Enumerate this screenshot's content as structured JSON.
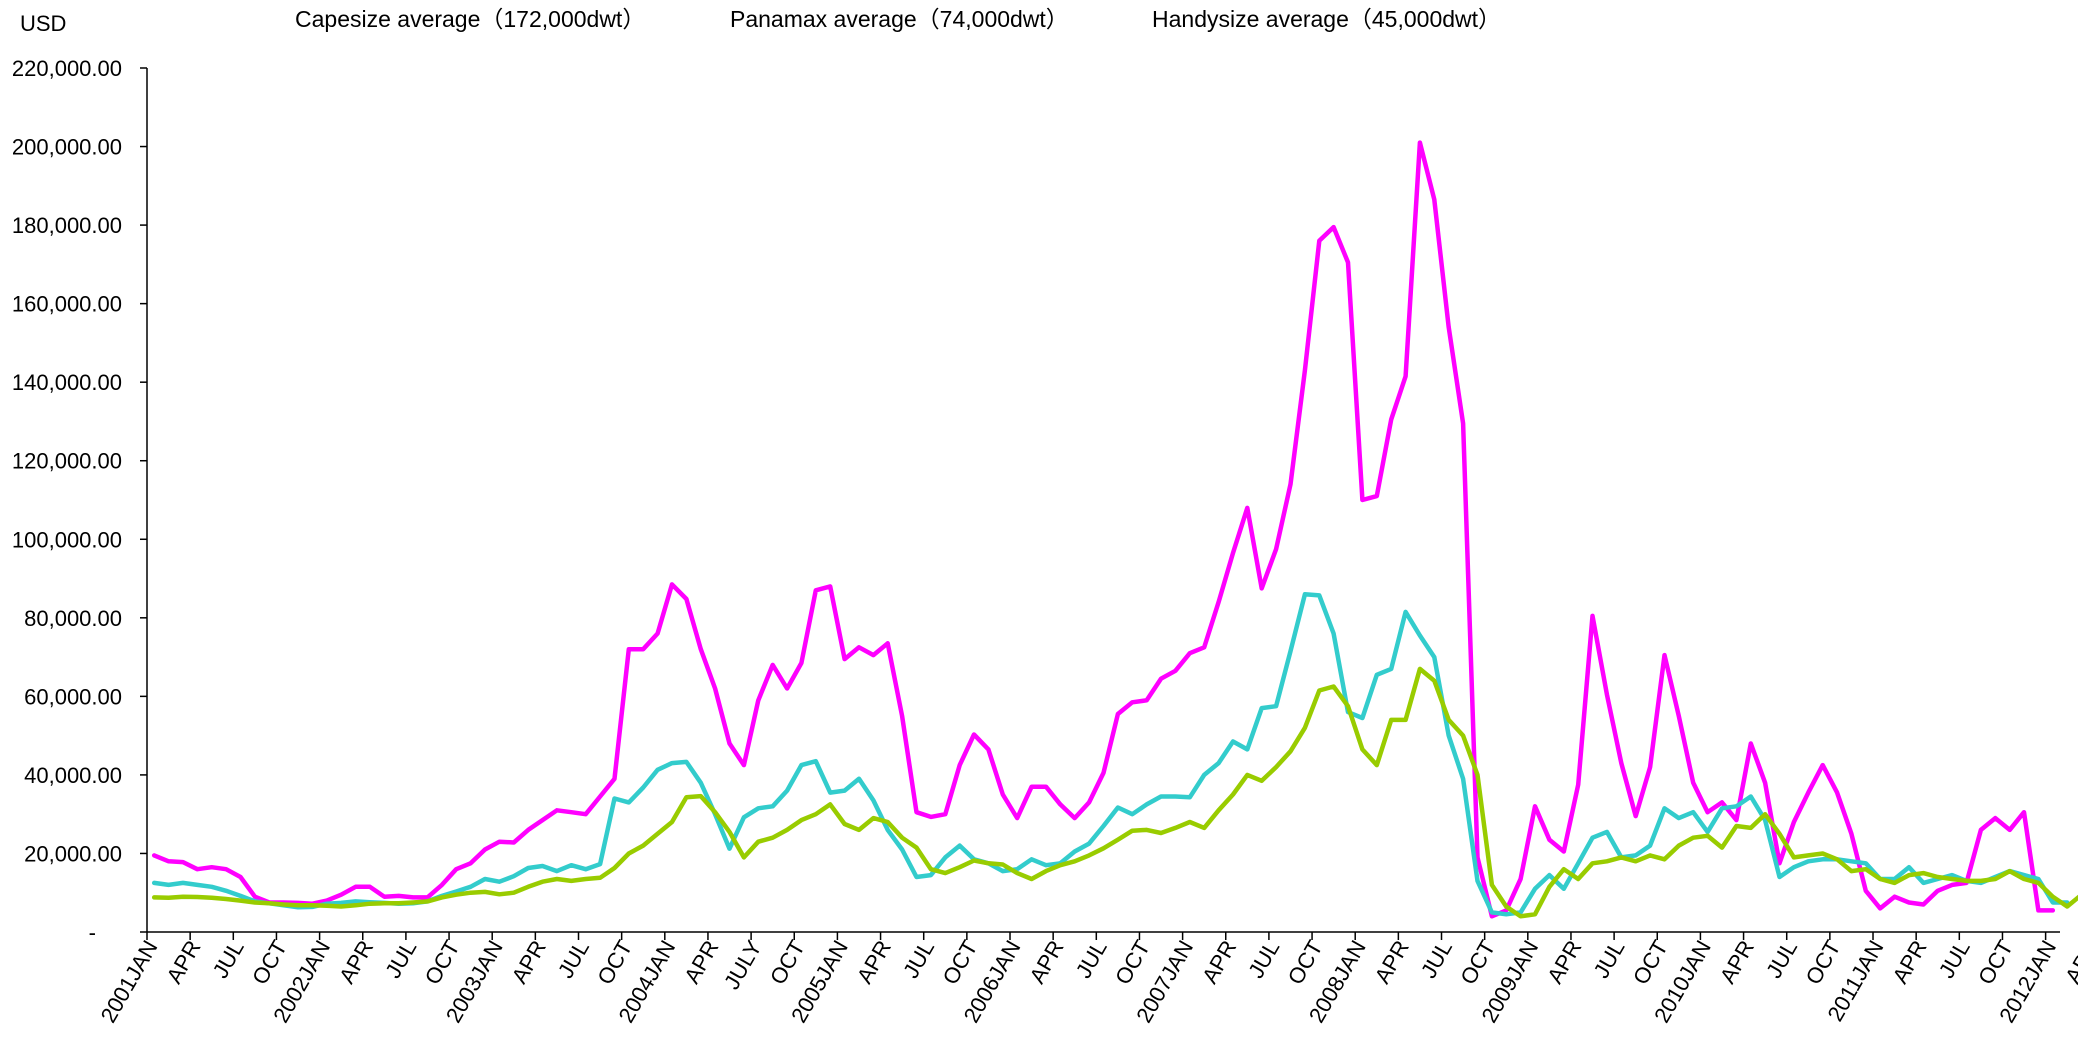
{
  "chart_data": {
    "type": "line",
    "title": "",
    "xlabel": "",
    "ylabel": "USD",
    "ylim": [
      0,
      220000
    ],
    "y_ticks": [
      {
        "value": 0,
        "label": "-"
      },
      {
        "value": 20000,
        "label": "20,000.00"
      },
      {
        "value": 40000,
        "label": "40,000.00"
      },
      {
        "value": 60000,
        "label": "60,000.00"
      },
      {
        "value": 80000,
        "label": "80,000.00"
      },
      {
        "value": 100000,
        "label": "100,000.00"
      },
      {
        "value": 120000,
        "label": "120,000.00"
      },
      {
        "value": 140000,
        "label": "140,000.00"
      },
      {
        "value": 160000,
        "label": "160,000.00"
      },
      {
        "value": 180000,
        "label": "180,000.00"
      },
      {
        "value": 200000,
        "label": "200,000.00"
      },
      {
        "value": 220000,
        "label": "220,000.00"
      }
    ],
    "x_tick_labels": [
      "2001JAN",
      "APR",
      "JUL",
      "OCT",
      "2002JAN",
      "APR",
      "JUL",
      "OCT",
      "2003JAN",
      "APR",
      "JUL",
      "OCT",
      "2004JAN",
      "APR",
      "JULY",
      "OCT",
      "2005JAN",
      "APR",
      "JUL",
      "OCT",
      "2006JAN",
      "APR",
      "JUL",
      "OCT",
      "2007JAN",
      "APR",
      "JUL",
      "OCT",
      "2008JAN",
      "APR",
      "JUL",
      "OCT",
      "2009JAN",
      "APR",
      "JUL",
      "OCT",
      "2010JAN",
      "APR",
      "JUL",
      "OCT",
      "2011JAN",
      "APR",
      "JUL",
      "OCT",
      "2012JAN",
      "APR"
    ],
    "legend_position": "top",
    "grid": false,
    "series": [
      {
        "name": "Capesize average（172,000dwt）",
        "color": "#ff00ff",
        "values": [
          19500,
          18000,
          17800,
          16000,
          16500,
          16000,
          14000,
          9000,
          7500,
          7500,
          7400,
          7200,
          8000,
          9500,
          11500,
          11500,
          9000,
          9200,
          8800,
          8800,
          12000,
          16000,
          17500,
          21000,
          23000,
          22800,
          26000,
          28500,
          31000,
          30500,
          30000,
          34500,
          39000,
          72000,
          72000,
          76000,
          88500,
          84800,
          72000,
          62000,
          48000,
          42500,
          59000,
          68000,
          62000,
          68500,
          87000,
          88000,
          69500,
          72500,
          70500,
          73500,
          55000,
          30500,
          29300,
          30000,
          42500,
          50300,
          46500,
          35000,
          29000,
          37000,
          37000,
          32500,
          29000,
          33000,
          40500,
          55500,
          58500,
          59000,
          64500,
          66500,
          71000,
          72500,
          84000,
          96500,
          108000,
          87500,
          97500,
          114000,
          143000,
          176000,
          179500,
          170500,
          110000,
          111000,
          130500,
          141500,
          201000,
          186500,
          154000,
          129500,
          19000,
          4000,
          5500,
          13500,
          32000,
          23500,
          20500,
          37500,
          80500,
          60500,
          43000,
          29500,
          42000,
          70500,
          55000,
          38000,
          30500,
          33000,
          28500,
          48000,
          38000,
          17500,
          28000,
          35500,
          42500,
          35500,
          25000,
          10500,
          6000,
          9000,
          7500,
          7000,
          10500,
          12000,
          12500,
          26000,
          29000,
          26000,
          30500,
          5500,
          5500
        ]
      },
      {
        "name": "Panamax average（74,000dwt）",
        "color": "#33cccc",
        "values": [
          12500,
          12000,
          12500,
          12000,
          11500,
          10500,
          9200,
          7800,
          7300,
          6800,
          6300,
          6400,
          7200,
          7400,
          7800,
          7600,
          7400,
          7200,
          7300,
          7800,
          9200,
          10300,
          11500,
          13500,
          12800,
          14200,
          16300,
          16800,
          15500,
          17000,
          16000,
          17300,
          34000,
          33000,
          36800,
          41300,
          43000,
          43300,
          38000,
          30000,
          21200,
          29200,
          31500,
          32000,
          36000,
          42500,
          43500,
          35500,
          36000,
          39000,
          33500,
          26000,
          21000,
          14000,
          14500,
          19000,
          22000,
          18500,
          17500,
          15500,
          16000,
          18500,
          17000,
          17500,
          20500,
          22500,
          27000,
          31700,
          30000,
          32500,
          34500,
          34500,
          34300,
          40000,
          43000,
          48500,
          46500,
          57000,
          57500,
          71500,
          86000,
          85700,
          76000,
          56000,
          54500,
          65500,
          67000,
          81500,
          75500,
          70000,
          50000,
          39000,
          13000,
          5000,
          4500,
          5000,
          11000,
          14500,
          11000,
          17500,
          24000,
          25500,
          19000,
          19500,
          22000,
          31500,
          29000,
          30500,
          25500,
          31500,
          32000,
          34500,
          28500,
          14000,
          16500,
          18000,
          18500,
          18500,
          18000,
          17500,
          13500,
          13500,
          16500,
          12500,
          13500,
          14500,
          13000,
          12500,
          14000,
          15500,
          14500,
          13500,
          7500,
          7500
        ]
      },
      {
        "name": "Handysize average（45,000dwt）",
        "color": "#99cc00",
        "values": [
          8800,
          8700,
          9000,
          8900,
          8700,
          8400,
          8000,
          7500,
          7300,
          7000,
          6800,
          6800,
          6700,
          6500,
          6800,
          7200,
          7300,
          7300,
          7500,
          7800,
          8800,
          9500,
          10000,
          10200,
          9600,
          10000,
          11500,
          12800,
          13500,
          13000,
          13500,
          13800,
          16300,
          20000,
          22000,
          25000,
          28000,
          34300,
          34600,
          30500,
          25500,
          19000,
          23000,
          24000,
          26000,
          28500,
          30000,
          32500,
          27500,
          26000,
          29000,
          28000,
          24000,
          21500,
          16000,
          15000,
          16500,
          18200,
          17500,
          17200,
          15000,
          13500,
          15500,
          17000,
          18000,
          19500,
          21300,
          23500,
          25800,
          26000,
          25200,
          26500,
          28000,
          26500,
          31000,
          35000,
          40000,
          38500,
          42000,
          46000,
          52000,
          61500,
          62500,
          57500,
          46500,
          42500,
          54000,
          54000,
          67000,
          64000,
          54000,
          50000,
          40000,
          12000,
          6500,
          4000,
          4500,
          11500,
          16000,
          13500,
          17500,
          18000,
          19000,
          18000,
          19500,
          18500,
          22000,
          24000,
          24500,
          21500,
          27000,
          26500,
          30000,
          25000,
          19000,
          19500,
          20000,
          18500,
          15500,
          16000,
          13500,
          12500,
          14500,
          15000,
          14000,
          13500,
          13000,
          13000,
          13500,
          15500,
          13500,
          12500,
          9000,
          6500,
          9500
        ]
      }
    ]
  }
}
